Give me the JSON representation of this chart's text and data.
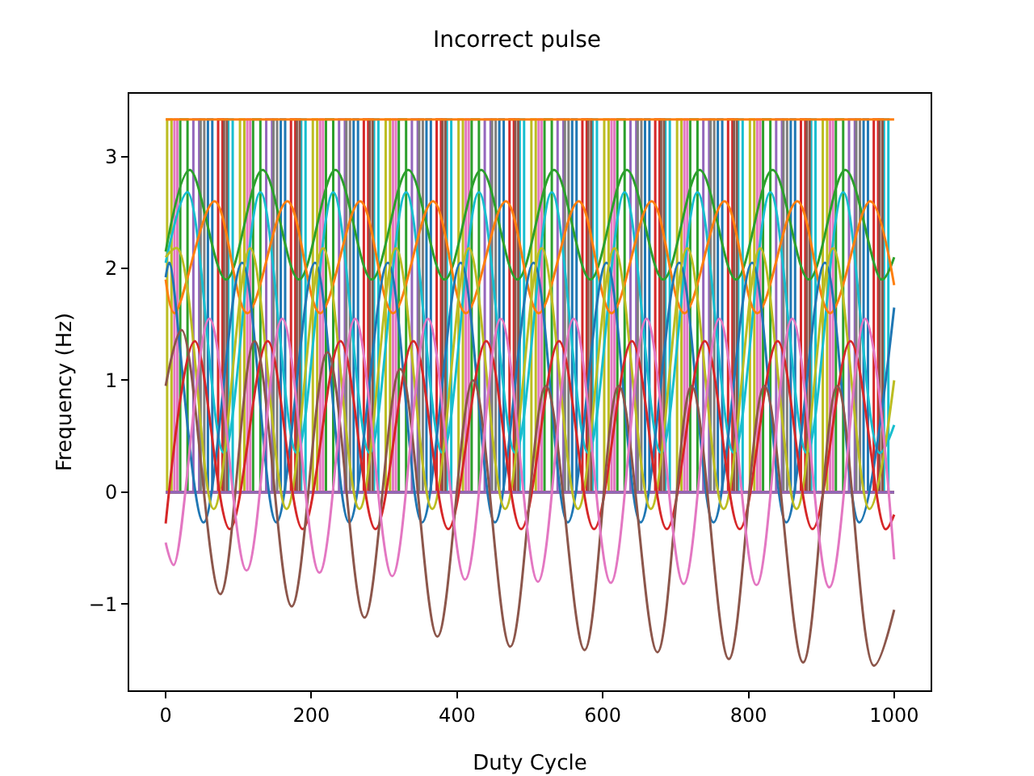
{
  "chart_data": {
    "type": "line",
    "title": "Incorrect pulse",
    "xlabel": "Duty Cycle",
    "ylabel": "Frequency (Hz)",
    "xlim": [
      -50,
      1050
    ],
    "ylim": [
      -1.77,
      3.56
    ],
    "xticks": [
      0,
      200,
      400,
      600,
      800,
      1000
    ],
    "yticks": [
      -1,
      0,
      1,
      2,
      3
    ],
    "grid": false,
    "series": [
      {
        "type": "step",
        "color": "#9467bd",
        "x": [
          0,
          38,
          46,
          138,
          146,
          238,
          246,
          338,
          346,
          438,
          446,
          538,
          546,
          638,
          646,
          738,
          746,
          838,
          846,
          938,
          946,
          1000
        ],
        "values": [
          0,
          3.33,
          0,
          3.33,
          0,
          3.33,
          0,
          3.33,
          0,
          3.33,
          0,
          3.33,
          0,
          3.33,
          0,
          3.33,
          0,
          3.33,
          0,
          3.33,
          0,
          0
        ]
      },
      {
        "type": "step",
        "color": "#1f77b4",
        "x": [
          0,
          58,
          64,
          158,
          164,
          258,
          264,
          358,
          364,
          458,
          464,
          558,
          564,
          658,
          664,
          758,
          764,
          858,
          864,
          958,
          964,
          1000
        ],
        "values": [
          0,
          3.33,
          0,
          3.33,
          0,
          3.33,
          0,
          3.33,
          0,
          3.33,
          0,
          3.33,
          0,
          3.33,
          0,
          3.33,
          0,
          3.33,
          0,
          3.33,
          0,
          0
        ]
      },
      {
        "type": "step",
        "color": "#2ca02c",
        "x": [
          0,
          20,
          30,
          120,
          130,
          220,
          230,
          320,
          330,
          420,
          430,
          520,
          530,
          620,
          630,
          720,
          730,
          820,
          830,
          920,
          930,
          1000
        ],
        "values": [
          0,
          3.33,
          0,
          3.33,
          0,
          3.33,
          0,
          3.33,
          0,
          3.33,
          0,
          3.33,
          0,
          3.33,
          0,
          3.33,
          0,
          3.33,
          0,
          3.33,
          0,
          0
        ]
      },
      {
        "type": "step",
        "color": "#d62728",
        "x": [
          0,
          72,
          78,
          172,
          178,
          272,
          278,
          372,
          378,
          472,
          478,
          572,
          578,
          672,
          678,
          772,
          778,
          872,
          878,
          972,
          978,
          1000
        ],
        "values": [
          0,
          3.33,
          0,
          3.33,
          0,
          3.33,
          0,
          3.33,
          0,
          3.33,
          0,
          3.33,
          0,
          3.33,
          0,
          3.33,
          0,
          3.33,
          0,
          3.33,
          0,
          0
        ]
      },
      {
        "type": "step",
        "color": "#bcbd22",
        "x": [
          0,
          2,
          8,
          102,
          108,
          202,
          208,
          302,
          308,
          402,
          408,
          502,
          508,
          602,
          608,
          702,
          708,
          802,
          808,
          902,
          908,
          1000
        ],
        "values": [
          0,
          3.33,
          0,
          3.33,
          0,
          3.33,
          0,
          3.33,
          0,
          3.33,
          0,
          3.33,
          0,
          3.33,
          0,
          3.33,
          0,
          3.33,
          0,
          3.33,
          0,
          0
        ]
      },
      {
        "type": "step",
        "color": "#17becf",
        "x": [
          0,
          86,
          92,
          186,
          192,
          286,
          292,
          386,
          392,
          486,
          492,
          586,
          592,
          686,
          692,
          786,
          792,
          886,
          892,
          986,
          992,
          1000
        ],
        "values": [
          0,
          3.33,
          0,
          3.33,
          0,
          3.33,
          0,
          3.33,
          0,
          3.33,
          0,
          3.33,
          0,
          3.33,
          0,
          3.33,
          0,
          3.33,
          0,
          3.33,
          0,
          0
        ]
      },
      {
        "type": "step",
        "color": "#7f7f7f",
        "x": [
          0,
          48,
          53,
          148,
          153,
          248,
          253,
          348,
          353,
          448,
          453,
          548,
          553,
          648,
          653,
          748,
          753,
          848,
          853,
          948,
          953,
          1000
        ],
        "values": [
          0,
          3.33,
          0,
          3.33,
          0,
          3.33,
          0,
          3.33,
          0,
          3.33,
          0,
          3.33,
          0,
          3.33,
          0,
          3.33,
          0,
          3.33,
          0,
          3.33,
          0,
          0
        ]
      },
      {
        "type": "step",
        "color": "#e377c2",
        "x": [
          0,
          12,
          16,
          112,
          116,
          212,
          216,
          312,
          316,
          412,
          416,
          512,
          516,
          612,
          616,
          712,
          716,
          812,
          816,
          912,
          916,
          1000
        ],
        "values": [
          0,
          3.33,
          0,
          3.33,
          0,
          3.33,
          0,
          3.33,
          0,
          3.33,
          0,
          3.33,
          0,
          3.33,
          0,
          3.33,
          0,
          3.33,
          0,
          3.33,
          0,
          0
        ]
      },
      {
        "type": "step",
        "color": "#8c564b",
        "x": [
          0,
          80,
          84,
          180,
          184,
          280,
          284,
          380,
          384,
          480,
          484,
          580,
          584,
          680,
          684,
          780,
          784,
          880,
          884,
          980,
          984,
          1000
        ],
        "values": [
          0,
          3.33,
          0,
          3.33,
          0,
          3.33,
          0,
          3.33,
          0,
          3.33,
          0,
          3.33,
          0,
          3.33,
          0,
          3.33,
          0,
          3.33,
          0,
          3.33,
          0,
          0
        ]
      },
      {
        "type": "step",
        "color": "#ff7f0e",
        "x": [
          0,
          1000
        ],
        "values": [
          3.33,
          3.33
        ]
      },
      {
        "type": "step",
        "color": "#9467bd",
        "x": [
          0,
          1000
        ],
        "values": [
          0,
          0
        ]
      },
      {
        "color": "#2ca02c",
        "x": [
          0,
          33,
          83,
          133,
          183,
          233,
          283,
          333,
          383,
          433,
          483,
          533,
          583,
          633,
          683,
          733,
          783,
          833,
          883,
          933,
          983,
          1000
        ],
        "values": [
          2.15,
          2.88,
          1.9,
          2.88,
          1.9,
          2.88,
          1.9,
          2.88,
          1.9,
          2.88,
          1.9,
          2.88,
          1.9,
          2.88,
          1.9,
          2.88,
          1.9,
          2.88,
          1.9,
          2.88,
          1.9,
          2.1
        ]
      },
      {
        "color": "#17becf",
        "x": [
          0,
          30,
          80,
          130,
          180,
          230,
          280,
          330,
          380,
          430,
          480,
          530,
          580,
          630,
          680,
          730,
          780,
          830,
          880,
          930,
          980,
          1000
        ],
        "values": [
          2.05,
          2.68,
          0.35,
          2.68,
          0.35,
          2.68,
          0.35,
          2.68,
          0.35,
          2.68,
          0.35,
          2.68,
          0.35,
          2.68,
          0.35,
          2.68,
          0.35,
          2.68,
          0.35,
          2.68,
          0.35,
          0.6
        ]
      },
      {
        "color": "#ff7f0e",
        "x": [
          0,
          12,
          67,
          112,
          167,
          212,
          267,
          312,
          367,
          412,
          467,
          512,
          567,
          612,
          667,
          712,
          767,
          812,
          867,
          912,
          967,
          1000
        ],
        "values": [
          1.9,
          1.6,
          2.6,
          1.6,
          2.6,
          1.6,
          2.6,
          1.6,
          2.6,
          1.6,
          2.6,
          1.6,
          2.6,
          1.6,
          2.6,
          1.6,
          2.6,
          1.6,
          2.6,
          1.6,
          2.6,
          1.85
        ]
      },
      {
        "color": "#1f77b4",
        "x": [
          0,
          5,
          52,
          105,
          152,
          205,
          252,
          305,
          352,
          405,
          452,
          505,
          552,
          605,
          652,
          705,
          752,
          805,
          852,
          905,
          952,
          1000
        ],
        "values": [
          1.92,
          2.05,
          -0.27,
          2.05,
          -0.27,
          2.05,
          -0.27,
          2.05,
          -0.27,
          2.05,
          -0.27,
          2.05,
          -0.27,
          2.05,
          -0.27,
          2.05,
          -0.27,
          2.05,
          -0.27,
          2.05,
          -0.27,
          1.65
        ]
      },
      {
        "color": "#bcbd22",
        "x": [
          0,
          16,
          66,
          116,
          166,
          216,
          266,
          316,
          366,
          416,
          466,
          516,
          566,
          616,
          666,
          716,
          766,
          816,
          866,
          916,
          966,
          1000
        ],
        "values": [
          2.1,
          2.18,
          -0.15,
          2.18,
          -0.15,
          2.18,
          -0.15,
          2.18,
          -0.15,
          2.18,
          -0.15,
          2.18,
          -0.15,
          2.18,
          -0.15,
          2.18,
          -0.15,
          2.18,
          -0.15,
          2.18,
          -0.15,
          1.0
        ]
      },
      {
        "color": "#d62728",
        "x": [
          0,
          40,
          88,
          140,
          188,
          240,
          288,
          340,
          388,
          440,
          488,
          540,
          588,
          640,
          688,
          740,
          788,
          840,
          888,
          940,
          988,
          1000
        ],
        "values": [
          -0.28,
          1.35,
          -0.33,
          1.35,
          -0.33,
          1.35,
          -0.33,
          1.35,
          -0.33,
          1.35,
          -0.33,
          1.35,
          -0.33,
          1.35,
          -0.33,
          1.35,
          -0.33,
          1.35,
          -0.33,
          1.35,
          -0.33,
          -0.2
        ]
      },
      {
        "color": "#8c564b",
        "x": [
          0,
          22,
          75,
          122,
          173,
          222,
          273,
          322,
          373,
          422,
          473,
          522,
          575,
          622,
          675,
          722,
          773,
          822,
          875,
          922,
          972,
          1000
        ],
        "values": [
          0.95,
          1.45,
          -0.91,
          1.35,
          -1.02,
          1.25,
          -1.12,
          1.1,
          -1.29,
          1.0,
          -1.38,
          0.95,
          -1.41,
          0.95,
          -1.43,
          0.95,
          -1.49,
          0.95,
          -1.52,
          0.95,
          -1.55,
          -1.05
        ]
      },
      {
        "color": "#e377c2",
        "x": [
          0,
          11,
          60,
          111,
          160,
          211,
          260,
          311,
          360,
          411,
          460,
          511,
          560,
          611,
          660,
          711,
          760,
          811,
          860,
          911,
          960,
          1000
        ],
        "values": [
          -0.45,
          -0.65,
          1.55,
          -0.7,
          1.55,
          -0.72,
          1.55,
          -0.75,
          1.55,
          -0.78,
          1.55,
          -0.8,
          1.55,
          -0.81,
          1.55,
          -0.82,
          1.55,
          -0.83,
          1.55,
          -0.85,
          1.55,
          -0.6
        ]
      }
    ]
  }
}
